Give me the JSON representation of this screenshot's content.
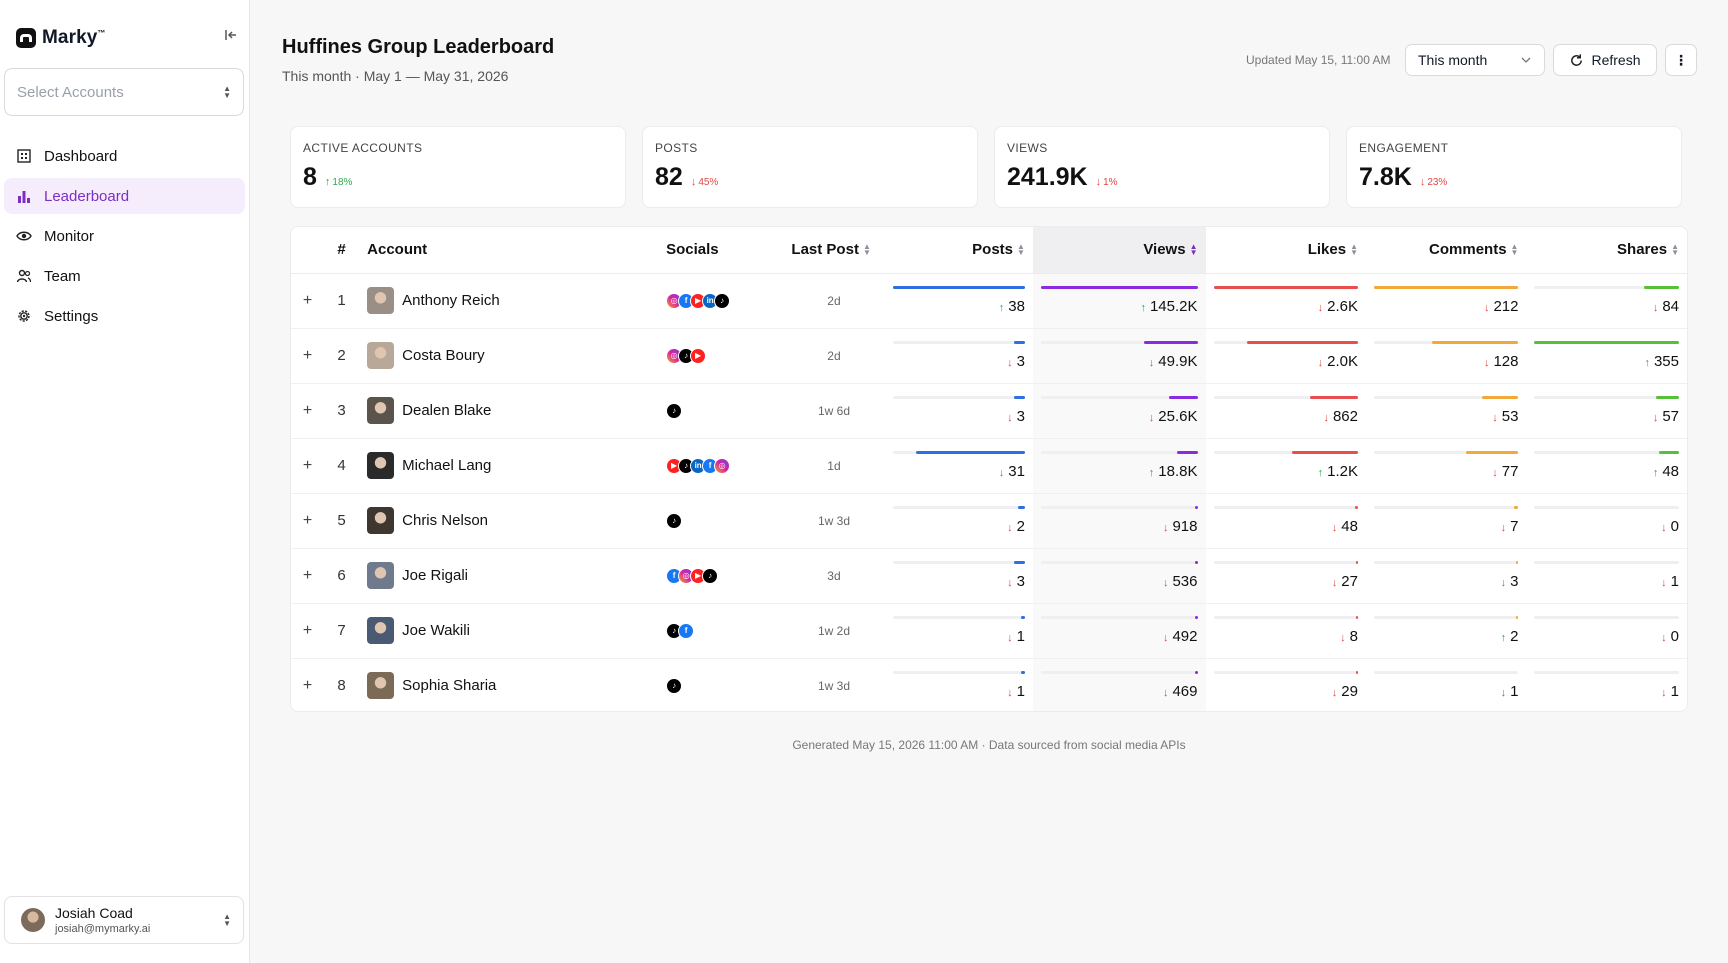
{
  "brand": {
    "name": "Marky",
    "tm": "™"
  },
  "sidebar": {
    "select_placeholder": "Select Accounts",
    "nav": [
      {
        "label": "Dashboard",
        "icon": "building-icon",
        "active": false
      },
      {
        "label": "Leaderboard",
        "icon": "bar-chart-icon",
        "active": true
      },
      {
        "label": "Monitor",
        "icon": "eye-icon",
        "active": false
      },
      {
        "label": "Team",
        "icon": "users-icon",
        "active": false
      },
      {
        "label": "Settings",
        "icon": "gear-icon",
        "active": false
      }
    ],
    "user": {
      "name": "Josiah Coad",
      "email": "josiah@mymarky.ai"
    }
  },
  "header": {
    "title": "Huffines Group Leaderboard",
    "subtitle": "This month · May 1 — May 31, 2026",
    "updated": "Updated May 15, 11:00 AM",
    "range_value": "This month",
    "refresh_label": "Refresh",
    "more_label": "⋮"
  },
  "stats": [
    {
      "label": "ACTIVE ACCOUNTS",
      "value": "8",
      "delta": "18%",
      "direction": "up"
    },
    {
      "label": "POSTS",
      "value": "82",
      "delta": "45%",
      "direction": "down"
    },
    {
      "label": "VIEWS",
      "value": "241.9K",
      "delta": "1%",
      "direction": "down"
    },
    {
      "label": "ENGAGEMENT",
      "value": "7.8K",
      "delta": "23%",
      "direction": "down"
    }
  ],
  "table": {
    "columns": [
      "#",
      "Account",
      "Socials",
      "Last Post",
      "Posts",
      "Views",
      "Likes",
      "Comments",
      "Shares"
    ],
    "metric_colors": {
      "posts": "#2f6fe4",
      "views": "#8a2be2",
      "likes": "#e84e4e",
      "comments": "#f2a93b",
      "shares": "#55c03a"
    },
    "rows": [
      {
        "rank": "1",
        "name": "Anthony Reich",
        "avatar_color": "#9a8f86",
        "socials": [
          "instagram",
          "facebook",
          "youtube",
          "linkedin",
          "tiktok"
        ],
        "last_post": "2d",
        "posts": {
          "value": "38",
          "dir": "up",
          "fill": 1.0
        },
        "views": {
          "value": "145.2K",
          "dir": "up",
          "fill": 1.0
        },
        "likes": {
          "value": "2.6K",
          "dir": "down",
          "fill": 1.0
        },
        "comments": {
          "value": "212",
          "dir": "down",
          "fill": 1.0
        },
        "shares": {
          "value": "84",
          "dir": "down",
          "fill": 0.24
        }
      },
      {
        "rank": "2",
        "name": "Costa Boury",
        "avatar_color": "#b8a89a",
        "socials": [
          "instagram",
          "tiktok",
          "youtube"
        ],
        "last_post": "2d",
        "posts": {
          "value": "3",
          "dir": "down",
          "fill": 0.08
        },
        "views": {
          "value": "49.9K",
          "dir": "down",
          "fill": 0.34
        },
        "likes": {
          "value": "2.0K",
          "dir": "down",
          "fill": 0.77
        },
        "comments": {
          "value": "128",
          "dir": "down",
          "fill": 0.6
        },
        "shares": {
          "value": "355",
          "dir": "up",
          "fill": 1.0
        }
      },
      {
        "rank": "3",
        "name": "Dealen Blake",
        "avatar_color": "#5b544c",
        "socials": [
          "tiktok"
        ],
        "last_post": "1w 6d",
        "posts": {
          "value": "3",
          "dir": "down",
          "fill": 0.08
        },
        "views": {
          "value": "25.6K",
          "dir": "down",
          "fill": 0.18
        },
        "likes": {
          "value": "862",
          "dir": "down",
          "fill": 0.33
        },
        "comments": {
          "value": "53",
          "dir": "down",
          "fill": 0.25
        },
        "shares": {
          "value": "57",
          "dir": "down",
          "fill": 0.16
        }
      },
      {
        "rank": "4",
        "name": "Michael Lang",
        "avatar_color": "#2a2a2a",
        "socials": [
          "youtube",
          "tiktok",
          "linkedin",
          "facebook",
          "instagram"
        ],
        "last_post": "1d",
        "posts": {
          "value": "31",
          "dir": "down",
          "fill": 0.82
        },
        "views": {
          "value": "18.8K",
          "dir": "up",
          "fill": 0.13
        },
        "likes": {
          "value": "1.2K",
          "dir": "up",
          "fill": 0.46
        },
        "comments": {
          "value": "77",
          "dir": "down",
          "fill": 0.36
        },
        "shares": {
          "value": "48",
          "dir": "up",
          "fill": 0.14
        }
      },
      {
        "rank": "5",
        "name": "Chris Nelson",
        "avatar_color": "#3d3631",
        "socials": [
          "tiktok"
        ],
        "last_post": "1w 3d",
        "posts": {
          "value": "2",
          "dir": "down",
          "fill": 0.05
        },
        "views": {
          "value": "918",
          "dir": "down",
          "fill": 0.01
        },
        "likes": {
          "value": "48",
          "dir": "down",
          "fill": 0.02
        },
        "comments": {
          "value": "7",
          "dir": "down",
          "fill": 0.03
        },
        "shares": {
          "value": "0",
          "dir": "down",
          "fill": 0.0
        }
      },
      {
        "rank": "6",
        "name": "Joe Rigali",
        "avatar_color": "#6f7a8c",
        "socials": [
          "facebook",
          "instagram",
          "youtube",
          "tiktok"
        ],
        "last_post": "3d",
        "posts": {
          "value": "3",
          "dir": "down",
          "fill": 0.08
        },
        "views": {
          "value": "536",
          "dir": "down",
          "fill": 0.01
        },
        "likes": {
          "value": "27",
          "dir": "down",
          "fill": 0.01
        },
        "comments": {
          "value": "3",
          "dir": "down",
          "fill": 0.01
        },
        "shares": {
          "value": "1",
          "dir": "down",
          "fill": 0.0
        }
      },
      {
        "rank": "7",
        "name": "Joe Wakili",
        "avatar_color": "#4a5a72",
        "socials": [
          "tiktok",
          "facebook"
        ],
        "last_post": "1w 2d",
        "posts": {
          "value": "1",
          "dir": "down",
          "fill": 0.03
        },
        "views": {
          "value": "492",
          "dir": "down",
          "fill": 0.01
        },
        "likes": {
          "value": "8",
          "dir": "down",
          "fill": 0.01
        },
        "comments": {
          "value": "2",
          "dir": "up",
          "fill": 0.01
        },
        "shares": {
          "value": "0",
          "dir": "down",
          "fill": 0.0
        }
      },
      {
        "rank": "8",
        "name": "Sophia Sharia",
        "avatar_color": "#7b6a55",
        "socials": [
          "tiktok"
        ],
        "last_post": "1w 3d",
        "posts": {
          "value": "1",
          "dir": "down",
          "fill": 0.03
        },
        "views": {
          "value": "469",
          "dir": "down",
          "fill": 0.01
        },
        "likes": {
          "value": "29",
          "dir": "down",
          "fill": 0.01
        },
        "comments": {
          "value": "1",
          "dir": "down",
          "fill": 0.0
        },
        "shares": {
          "value": "1",
          "dir": "down",
          "fill": 0.0
        }
      }
    ]
  },
  "footer": {
    "note": "Generated May 15, 2026 11:00 AM · Data sourced from social media APIs"
  }
}
